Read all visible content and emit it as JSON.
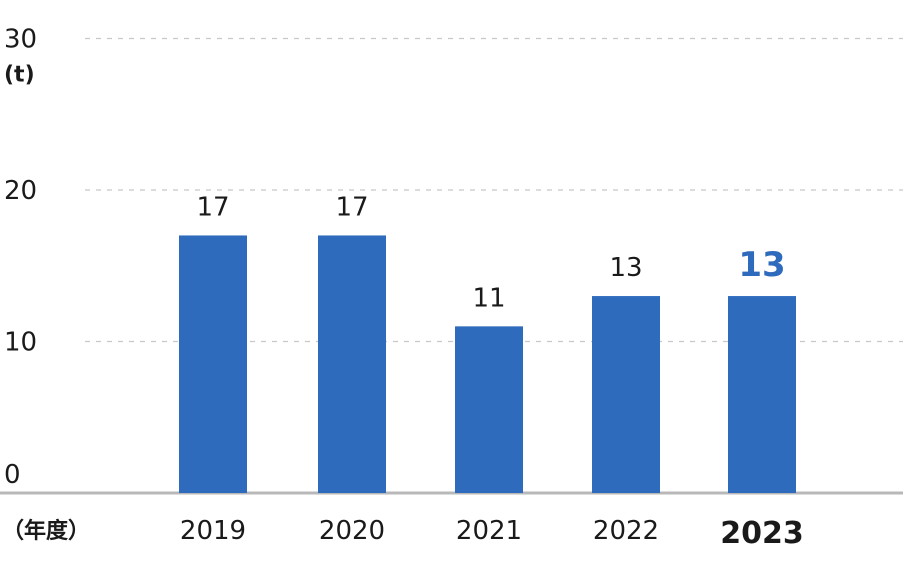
{
  "chart_data": {
    "type": "bar",
    "title": "",
    "ylabel": "(t)",
    "xlabel": "（年度）",
    "categories": [
      "2019",
      "2020",
      "2021",
      "2022",
      "2023"
    ],
    "values": [
      17,
      17,
      11,
      13,
      13
    ],
    "value_labels": [
      "17",
      "17",
      "11",
      "13",
      "13"
    ],
    "highlight_category": "2023",
    "ylim": [
      0,
      30
    ],
    "yticks": [
      0,
      10,
      20,
      30
    ],
    "grid": true,
    "legend": "none",
    "colors": {
      "bar": "#2f6bbd",
      "highlight_label": "#2f6bbd",
      "text": "#1a1a1a",
      "grid": "#c8c8c8",
      "axis": "#b8b8b8"
    }
  }
}
